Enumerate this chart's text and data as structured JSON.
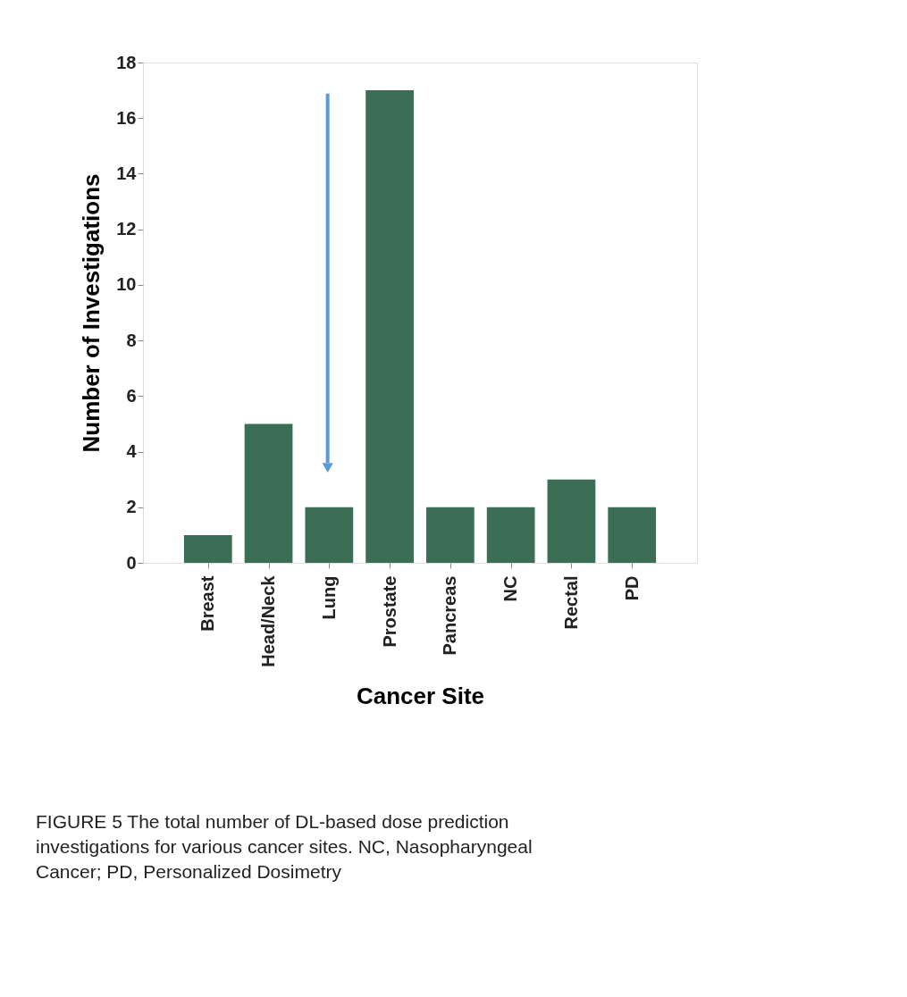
{
  "chart_data": {
    "type": "bar",
    "xlabel": "Cancer Site",
    "ylabel": "Number of Investigations",
    "categories": [
      "Breast",
      "Head/Neck",
      "Lung",
      "Prostate",
      "Pancreas",
      "NC",
      "Rectal",
      "PD"
    ],
    "values": [
      1,
      5,
      2,
      17,
      2,
      2,
      3,
      2
    ],
    "color": "#3b6e55",
    "ylim": [
      0,
      18
    ],
    "yticks": [
      0,
      2,
      4,
      6,
      8,
      10,
      12,
      14,
      16,
      18
    ],
    "grid": false,
    "annotations": [
      "FIGURE 5    The total number of DL-based dose prediction investigations for various cancer sites. NC, Nasopharyngeal Cancer; PD, Personalized Dosimetry"
    ]
  }
}
